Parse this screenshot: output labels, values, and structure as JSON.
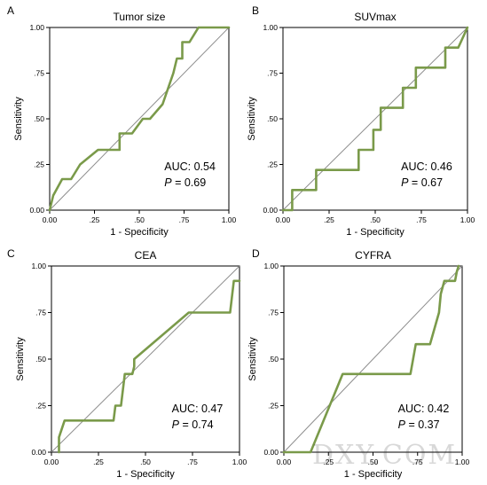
{
  "chart_data": [
    {
      "type": "line",
      "panel_letter": "A",
      "title": "Tumor size",
      "xlabel": "1 - Specificity",
      "ylabel": "Sensitivity",
      "xlim": [
        0,
        1
      ],
      "ylim": [
        0,
        1
      ],
      "xticks": [
        "0.00",
        ".25",
        ".50",
        ".75",
        "1.00"
      ],
      "yticks": [
        "0.00",
        ".25",
        ".50",
        ".75",
        "1.00"
      ],
      "grid": false,
      "reference_line": true,
      "auc_text": "AUC: 0.54",
      "p_label": "P",
      "p_text": " = 0.69",
      "series": [
        {
          "x": [
            0,
            0.02,
            0.07,
            0.12,
            0.17,
            0.27,
            0.39,
            0.39,
            0.46,
            0.52,
            0.56,
            0.63,
            0.69,
            0.71,
            0.74,
            0.74,
            0.78,
            0.83,
            1.0
          ],
          "y": [
            0,
            0.08,
            0.17,
            0.17,
            0.25,
            0.33,
            0.33,
            0.42,
            0.42,
            0.5,
            0.5,
            0.58,
            0.75,
            0.83,
            0.83,
            0.92,
            0.92,
            1.0,
            1.0
          ]
        }
      ]
    },
    {
      "type": "line",
      "panel_letter": "B",
      "title": "SUVmax",
      "xlabel": "1 - Specificity",
      "ylabel": "Sensitivity",
      "xlim": [
        0,
        1
      ],
      "ylim": [
        0,
        1
      ],
      "xticks": [
        "0.00",
        ".25",
        ".50",
        ".75",
        "1.00"
      ],
      "yticks": [
        "0.00",
        ".25",
        ".50",
        ".75",
        "1.00"
      ],
      "grid": false,
      "reference_line": true,
      "auc_text": "AUC: 0.46",
      "p_label": "P",
      "p_text": " = 0.67",
      "series": [
        {
          "x": [
            0,
            0.05,
            0.05,
            0.18,
            0.18,
            0.41,
            0.41,
            0.49,
            0.49,
            0.53,
            0.53,
            0.65,
            0.65,
            0.72,
            0.72,
            0.88,
            0.88,
            0.95,
            1.0
          ],
          "y": [
            0,
            0,
            0.11,
            0.11,
            0.22,
            0.22,
            0.33,
            0.33,
            0.44,
            0.44,
            0.56,
            0.56,
            0.67,
            0.67,
            0.78,
            0.78,
            0.89,
            0.89,
            1.0
          ]
        }
      ]
    },
    {
      "type": "line",
      "panel_letter": "C",
      "title": "CEA",
      "xlabel": "1 - Specificity",
      "ylabel": "Sensitivity",
      "xlim": [
        0,
        1
      ],
      "ylim": [
        0,
        1
      ],
      "xticks": [
        "0.00",
        ".25",
        ".50",
        ".75",
        "1.00"
      ],
      "yticks": [
        "0.00",
        ".25",
        ".50",
        ".75",
        "1.00"
      ],
      "grid": false,
      "reference_line": true,
      "auc_text": "AUC: 0.47",
      "p_label": "P",
      "p_text": " = 0.74",
      "series": [
        {
          "x": [
            0.04,
            0.04,
            0.07,
            0.33,
            0.34,
            0.37,
            0.39,
            0.43,
            0.44,
            0.44,
            0.73,
            0.95,
            0.97,
            1.0
          ],
          "y": [
            0,
            0.08,
            0.17,
            0.17,
            0.25,
            0.25,
            0.42,
            0.42,
            0.46,
            0.5,
            0.75,
            0.75,
            0.92,
            0.92
          ]
        }
      ]
    },
    {
      "type": "line",
      "panel_letter": "D",
      "title": "CYFRA",
      "xlabel": "1 - Specificity",
      "ylabel": "Sensitivity",
      "xlim": [
        0,
        1
      ],
      "ylim": [
        0,
        1
      ],
      "xticks": [
        "0.00",
        ".25",
        ".50",
        ".75",
        "1.00"
      ],
      "yticks": [
        "0.00",
        ".25",
        ".50",
        ".75",
        "1.00"
      ],
      "grid": false,
      "reference_line": true,
      "auc_text": "AUC: 0.42",
      "p_label": "P",
      "p_text": " = 0.37",
      "series": [
        {
          "x": [
            0,
            0.15,
            0.33,
            0.71,
            0.74,
            0.82,
            0.87,
            0.88,
            0.9,
            0.96,
            0.97,
            0.98
          ],
          "y": [
            0,
            0,
            0.42,
            0.42,
            0.58,
            0.58,
            0.75,
            0.85,
            0.92,
            0.92,
            0.97,
            1.0
          ]
        }
      ]
    }
  ],
  "colors": {
    "curve": "#7a9a4a",
    "reference": "#8c8c8c",
    "axis": "#000000"
  },
  "watermark": "DXY.COM"
}
